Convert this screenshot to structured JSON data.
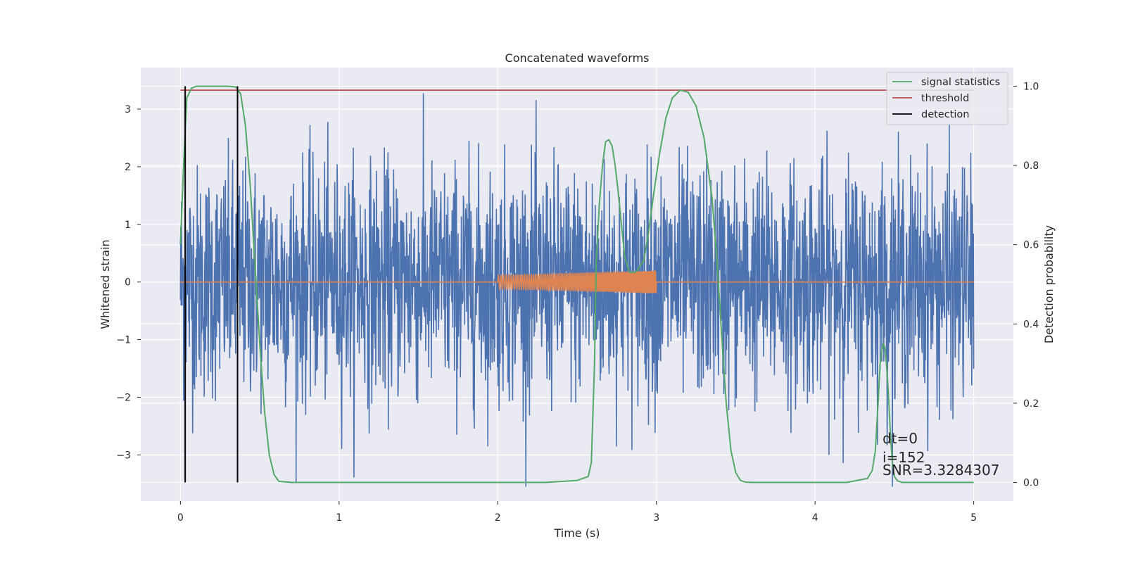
{
  "chart_data": {
    "type": "line",
    "title": "Concatenated waveforms",
    "xlabel": "Time (s)",
    "ylabel_left": "Whitened strain",
    "ylabel_right": "Detection probability",
    "xlim": [
      -0.25,
      5.25
    ],
    "ylim_left": [
      -3.8,
      3.72
    ],
    "ylim_right": [
      -0.047,
      1.047
    ],
    "xticks": [
      0,
      1,
      2,
      3,
      4,
      5
    ],
    "xtick_labels": [
      "0",
      "1",
      "2",
      "3",
      "4",
      "5"
    ],
    "yticks_left": [
      -3,
      -2,
      -1,
      0,
      1,
      2,
      3
    ],
    "ytick_labels_left": [
      "−3",
      "−2",
      "−1",
      "0",
      "1",
      "2",
      "3"
    ],
    "yticks_right": [
      0.0,
      0.2,
      0.4,
      0.6,
      0.8,
      1.0
    ],
    "ytick_labels_right": [
      "0.0",
      "0.2",
      "0.4",
      "0.6",
      "0.8",
      "1.0"
    ],
    "grid": true,
    "legend_position": "top-right",
    "series": [
      {
        "name": "",
        "axis": "left",
        "kind": "noise",
        "color": "#4c72b0",
        "x_range": [
          0,
          5
        ],
        "typical_amplitude": 1.0,
        "max_peak": 3.4,
        "min_peak": -3.55
      },
      {
        "name": "",
        "axis": "left",
        "kind": "chirp",
        "color": "#dd8452",
        "x_range": [
          2.0,
          3.0
        ],
        "amplitude_start": 0.12,
        "amplitude_end": 0.2
      },
      {
        "name": "signal statistics",
        "axis": "right",
        "color": "#55a868",
        "x": [
          0,
          0.02,
          0.04,
          0.07,
          0.1,
          0.2,
          0.3,
          0.35,
          0.38,
          0.41,
          0.44,
          0.47,
          0.5,
          0.53,
          0.56,
          0.59,
          0.62,
          0.7,
          1.5,
          2.3,
          2.5,
          2.57,
          2.59,
          2.61,
          2.62,
          2.64,
          2.66,
          2.68,
          2.7,
          2.72,
          2.74,
          2.76,
          2.78,
          2.8,
          2.83,
          2.86,
          2.88,
          2.92,
          2.95,
          2.98,
          3.02,
          3.06,
          3.1,
          3.15,
          3.2,
          3.25,
          3.3,
          3.35,
          3.38,
          3.41,
          3.44,
          3.47,
          3.5,
          3.53,
          3.56,
          3.6,
          3.8,
          4.2,
          4.33,
          4.36,
          4.38,
          4.39,
          4.4,
          4.41,
          4.42,
          4.43,
          4.44,
          4.45,
          4.46,
          4.47,
          4.48,
          4.49,
          4.5,
          4.52,
          4.55,
          4.6,
          4.8,
          5.0
        ],
        "y": [
          0.6,
          0.8,
          0.97,
          0.995,
          1.0,
          1.0,
          1.0,
          0.998,
          0.98,
          0.9,
          0.75,
          0.55,
          0.35,
          0.18,
          0.07,
          0.02,
          0.003,
          0.0,
          0.0,
          0.0,
          0.005,
          0.015,
          0.05,
          0.3,
          0.55,
          0.7,
          0.8,
          0.86,
          0.865,
          0.85,
          0.8,
          0.73,
          0.65,
          0.57,
          0.53,
          0.53,
          0.535,
          0.56,
          0.63,
          0.72,
          0.83,
          0.92,
          0.97,
          0.99,
          0.985,
          0.95,
          0.87,
          0.72,
          0.57,
          0.38,
          0.2,
          0.08,
          0.025,
          0.005,
          0.001,
          0.0,
          0.0,
          0.0,
          0.01,
          0.03,
          0.08,
          0.15,
          0.22,
          0.3,
          0.33,
          0.35,
          0.34,
          0.3,
          0.24,
          0.16,
          0.09,
          0.04,
          0.015,
          0.004,
          0.0,
          0.0,
          0.0,
          0.0
        ]
      },
      {
        "name": "threshold",
        "axis": "right",
        "color": "#c44e52",
        "x": [
          0,
          5
        ],
        "y": [
          0.99,
          0.99
        ]
      },
      {
        "name": "detection",
        "axis": "right",
        "color": "#000000",
        "x_positions": [
          0.03,
          0.36
        ],
        "y_range": [
          0,
          1
        ]
      }
    ],
    "annotations": [
      "dt=0",
      "i=152",
      "SNR=3.3284307"
    ]
  }
}
